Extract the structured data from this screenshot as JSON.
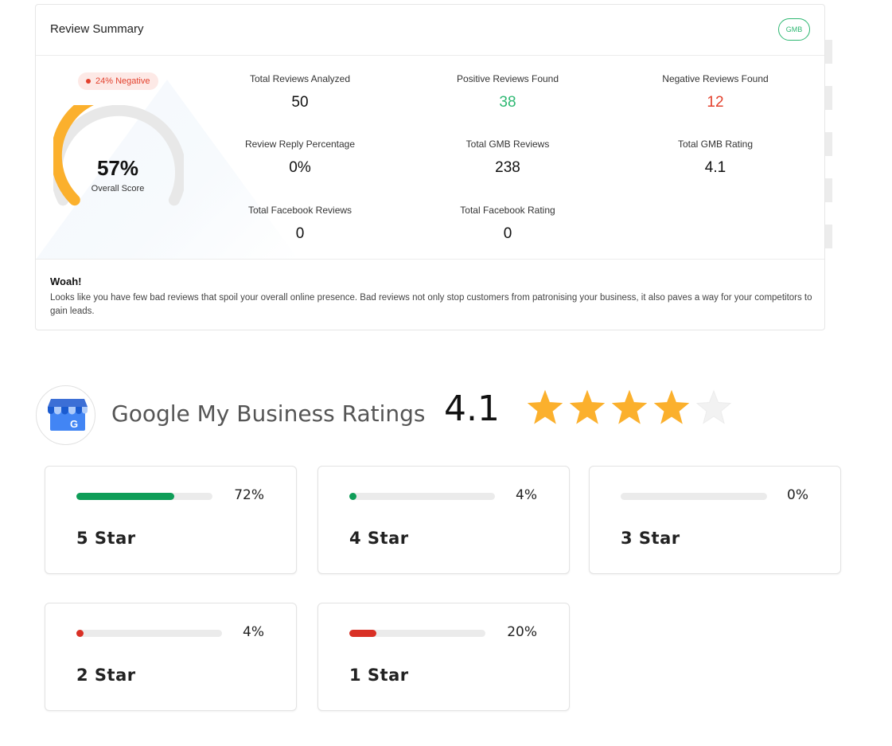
{
  "summary": {
    "title": "Review Summary",
    "badge": "GMB",
    "negative_pill": "24% Negative",
    "score_value": "57%",
    "score_fraction": 0.57,
    "score_label": "Overall Score",
    "metrics": [
      {
        "label": "Total Reviews Analyzed",
        "value": "50"
      },
      {
        "label": "Positive Reviews Found",
        "value": "38"
      },
      {
        "label": "Negative Reviews Found",
        "value": "12"
      },
      {
        "label": "Review Reply Percentage",
        "value": "0%"
      },
      {
        "label": "Total GMB Reviews",
        "value": "238"
      },
      {
        "label": "Total GMB Rating",
        "value": "4.1"
      },
      {
        "label": "Total Facebook Reviews",
        "value": "0"
      },
      {
        "label": "Total Facebook Rating",
        "value": "0"
      }
    ],
    "footer_title": "Woah!",
    "footer_text": "Looks like you have few bad reviews that spoil your overall online presence. Bad reviews not only stop customers from patronising your business, it also paves a way for your competitors to gain leads."
  },
  "gmb": {
    "title": "Google My Business Ratings",
    "rating": "4.1",
    "stars_filled": 4,
    "stars_total": 5,
    "breakdown": [
      {
        "label": "5 Star",
        "pct": "72%",
        "value": 72,
        "color": "#0f9d58"
      },
      {
        "label": "4 Star",
        "pct": "4%",
        "value": 4,
        "color": "#0f9d58"
      },
      {
        "label": "3 Star",
        "pct": "0%",
        "value": 0,
        "color": "#0f9d58"
      },
      {
        "label": "2 Star",
        "pct": "4%",
        "value": 4,
        "color": "#d93025"
      },
      {
        "label": "1 Star",
        "pct": "20%",
        "value": 20,
        "color": "#d93025"
      }
    ]
  },
  "colors": {
    "accent_green": "#2eb872",
    "negative_red": "#e3412d",
    "gauge_orange": "#fbb02d",
    "star_gold": "#fbb02d"
  }
}
